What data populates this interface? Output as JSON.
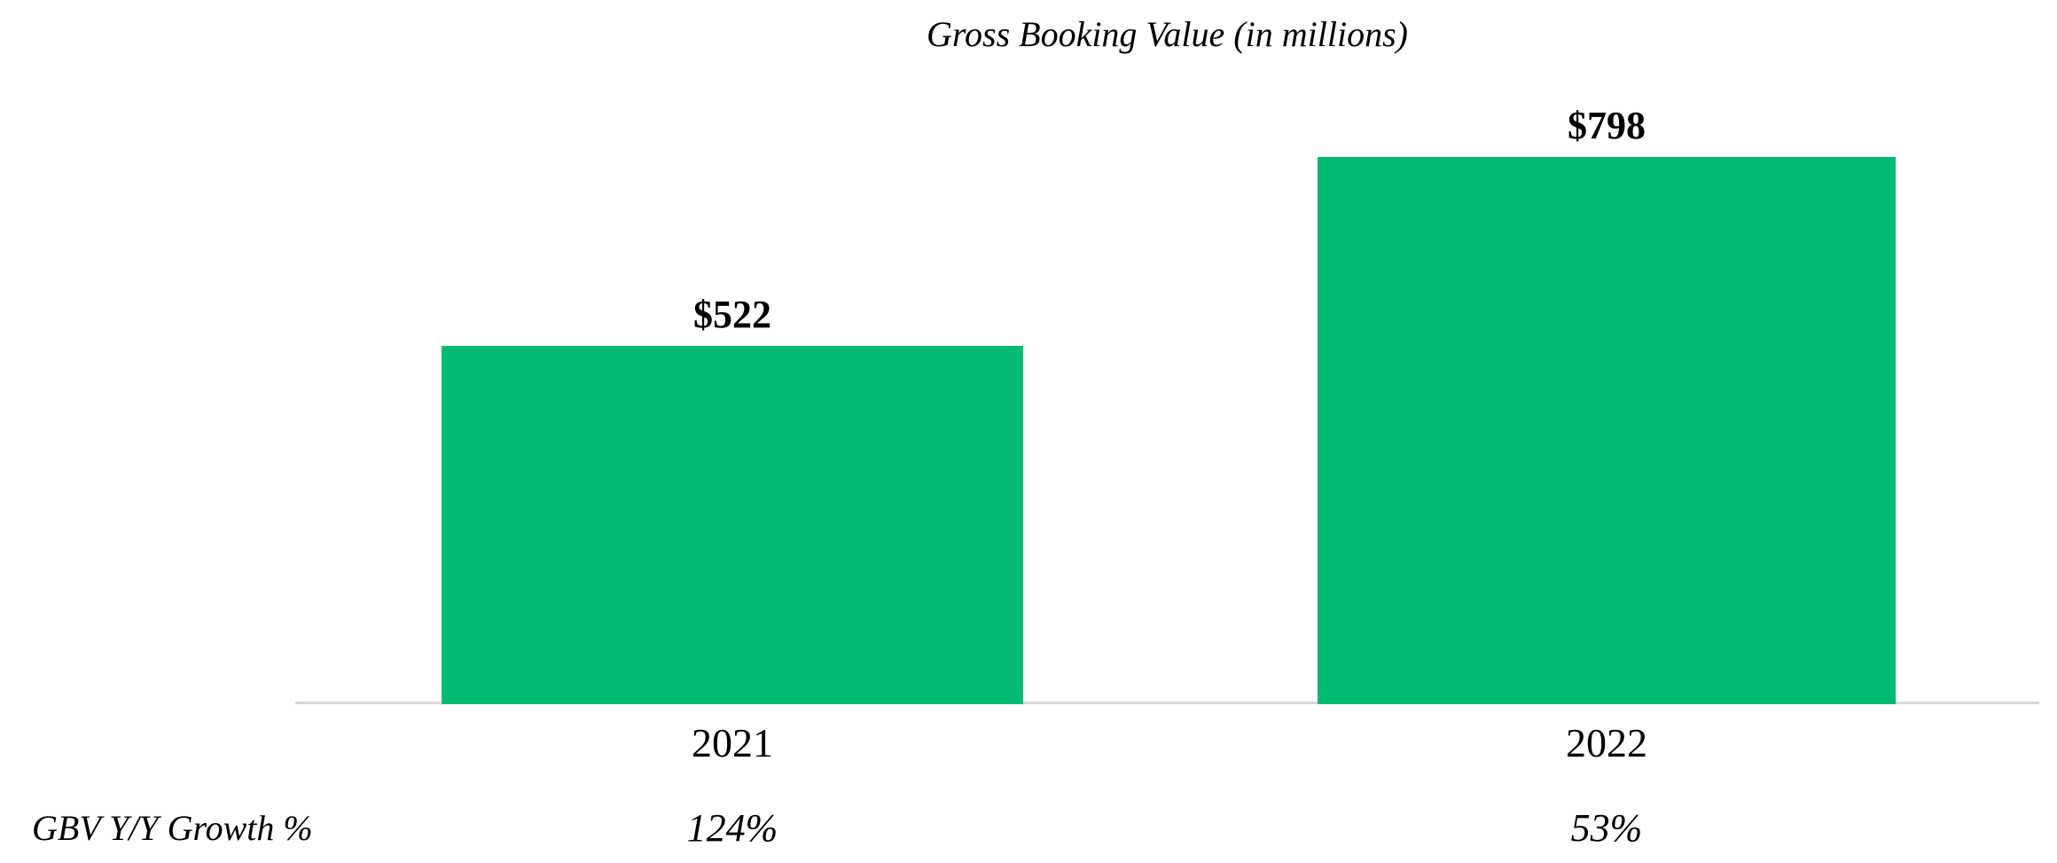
{
  "chart_data": {
    "type": "bar",
    "title": "Gross Booking Value (in millions)",
    "categories": [
      "2021",
      "2022"
    ],
    "series": [
      {
        "name": "Gross Booking Value ($M)",
        "values": [
          522,
          798
        ],
        "data_labels": [
          "$522",
          "$798"
        ]
      }
    ],
    "growth_row": {
      "label": "GBV Y/Y Growth %",
      "values": [
        "124%",
        "53%"
      ]
    },
    "xlabel": "",
    "ylabel": "",
    "ylim": [
      0,
      920
    ],
    "grid": false,
    "legend": false,
    "bar_color": "#00BA71",
    "axis_line_color": "#D9D9D9",
    "text_color": "#000000",
    "background_color": "#FFFFFF"
  }
}
